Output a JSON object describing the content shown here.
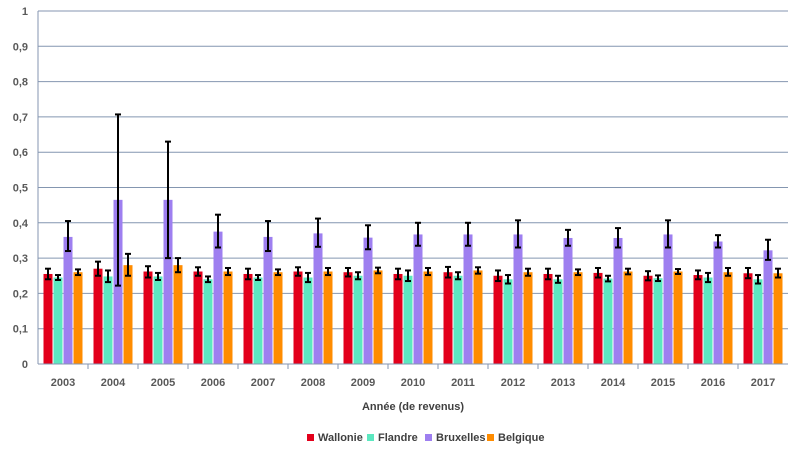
{
  "chart_data": {
    "type": "bar",
    "title": "",
    "xlabel": "Année (de revenus)",
    "ylabel": "",
    "ylim": [
      0,
      1
    ],
    "yticks": [
      "0",
      "0,1",
      "0,2",
      "0,3",
      "0,4",
      "0,5",
      "0,6",
      "0,7",
      "0,8",
      "0,9",
      "1"
    ],
    "grid": true,
    "legend_position": "bottom",
    "categories": [
      "2003",
      "2004",
      "2005",
      "2006",
      "2007",
      "2008",
      "2009",
      "2010",
      "2011",
      "2012",
      "2013",
      "2014",
      "2015",
      "2016",
      "2017"
    ],
    "series": [
      {
        "name": "Wallonie",
        "color": "#e3001b",
        "values": [
          0.255,
          0.27,
          0.262,
          0.262,
          0.255,
          0.262,
          0.26,
          0.255,
          0.26,
          0.25,
          0.255,
          0.258,
          0.25,
          0.252,
          0.257
        ],
        "err_low": [
          0.24,
          0.25,
          0.245,
          0.25,
          0.24,
          0.25,
          0.248,
          0.24,
          0.245,
          0.235,
          0.24,
          0.245,
          0.237,
          0.24,
          0.243
        ],
        "err_high": [
          0.27,
          0.29,
          0.277,
          0.274,
          0.27,
          0.274,
          0.272,
          0.27,
          0.275,
          0.265,
          0.27,
          0.272,
          0.263,
          0.265,
          0.272
        ]
      },
      {
        "name": "Flandre",
        "color": "#5ce8c0",
        "values": [
          0.245,
          0.248,
          0.248,
          0.24,
          0.245,
          0.245,
          0.25,
          0.25,
          0.25,
          0.24,
          0.24,
          0.242,
          0.243,
          0.245,
          0.24
        ],
        "err_low": [
          0.238,
          0.232,
          0.238,
          0.232,
          0.238,
          0.232,
          0.24,
          0.235,
          0.24,
          0.228,
          0.23,
          0.234,
          0.235,
          0.232,
          0.228
        ],
        "err_high": [
          0.252,
          0.265,
          0.258,
          0.248,
          0.252,
          0.258,
          0.26,
          0.265,
          0.26,
          0.252,
          0.25,
          0.25,
          0.251,
          0.258,
          0.252
        ]
      },
      {
        "name": "Bruxelles",
        "color": "#9e7ff0",
        "values": [
          0.36,
          0.465,
          0.465,
          0.375,
          0.36,
          0.37,
          0.358,
          0.367,
          0.367,
          0.367,
          0.357,
          0.357,
          0.367,
          0.347,
          0.322
        ],
        "err_low": [
          0.32,
          0.222,
          0.3,
          0.33,
          0.32,
          0.332,
          0.325,
          0.335,
          0.335,
          0.33,
          0.335,
          0.33,
          0.33,
          0.33,
          0.295
        ],
        "err_high": [
          0.405,
          0.707,
          0.63,
          0.423,
          0.405,
          0.412,
          0.393,
          0.4,
          0.4,
          0.407,
          0.38,
          0.385,
          0.407,
          0.365,
          0.352
        ]
      },
      {
        "name": "Belgique",
        "color": "#ff8c00",
        "values": [
          0.26,
          0.28,
          0.28,
          0.262,
          0.26,
          0.262,
          0.265,
          0.262,
          0.265,
          0.26,
          0.26,
          0.262,
          0.262,
          0.26,
          0.257
        ],
        "err_low": [
          0.252,
          0.25,
          0.26,
          0.252,
          0.252,
          0.252,
          0.257,
          0.252,
          0.256,
          0.25,
          0.252,
          0.254,
          0.255,
          0.25,
          0.245
        ],
        "err_high": [
          0.268,
          0.312,
          0.3,
          0.272,
          0.268,
          0.272,
          0.273,
          0.272,
          0.274,
          0.27,
          0.268,
          0.27,
          0.269,
          0.272,
          0.27
        ]
      }
    ]
  }
}
